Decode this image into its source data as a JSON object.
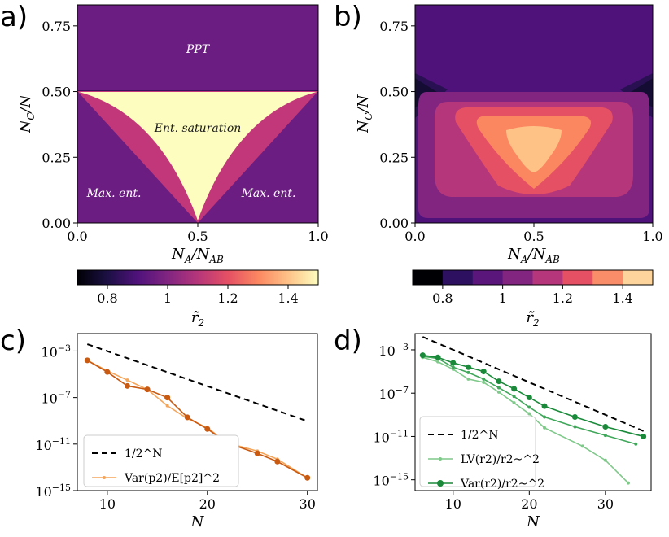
{
  "chart_data": [
    {
      "panel": "a)",
      "type": "heatmap",
      "xlabel": "N_A/N_AB",
      "ylabel": "N_C/N",
      "xlim": [
        0,
        1
      ],
      "ylim": [
        0,
        0.83
      ],
      "xticks": [
        "0.0",
        "0.5",
        "1.0"
      ],
      "yticks": [
        "0.00",
        "0.25",
        "0.50",
        "0.75"
      ],
      "regions": [
        {
          "label": "PPT",
          "value": 0.95
        },
        {
          "label": "Ent. saturation",
          "value": 1.5
        },
        {
          "label": "Max. ent.",
          "value": 1.0
        },
        {
          "label": "Max. ent.",
          "value": 1.0
        }
      ],
      "colorbar": {
        "label": "r̃₂",
        "range": [
          0.7,
          1.5
        ],
        "ticks": [
          "0.8",
          "1",
          "1.2",
          "1.4"
        ],
        "colormap": "magma",
        "discrete": false
      }
    },
    {
      "panel": "b)",
      "type": "heatmap",
      "xlabel": "N_A/N_AB",
      "ylabel": "N_C/N",
      "xlim": [
        0,
        1
      ],
      "ylim": [
        0,
        0.83
      ],
      "xticks": [
        "0.0",
        "0.5",
        "1.0"
      ],
      "yticks": [
        "0.00",
        "0.25",
        "0.50",
        "0.75"
      ],
      "contour_levels": [
        0.7,
        0.8,
        0.9,
        1.0,
        1.1,
        1.2,
        1.3,
        1.4,
        1.5
      ],
      "colorbar": {
        "label": "r̃₂",
        "range": [
          0.7,
          1.5
        ],
        "ticks": [
          "0.8",
          "1",
          "1.2",
          "1.4"
        ],
        "colormap": "magma",
        "discrete": true
      }
    },
    {
      "panel": "c)",
      "type": "line",
      "xlabel": "N",
      "ylabel": "",
      "yscale": "log",
      "xlim": [
        7,
        31
      ],
      "ylim_exp": [
        -15,
        -1.5
      ],
      "xticks": [
        "10",
        "20",
        "30"
      ],
      "yticks": [
        "10^-3",
        "10^-7",
        "10^-11",
        "10^-15"
      ],
      "series": [
        {
          "name": "1/2^N",
          "style": "dashed",
          "color": "#000000",
          "x": [
            8,
            30
          ],
          "y_exp": [
            -2.41,
            -9.03
          ]
        },
        {
          "name": "Var(p2)/E[p2]^2",
          "color": "#f5a55a",
          "x": [
            8,
            10,
            12,
            14,
            16,
            18,
            20,
            22,
            25,
            27,
            30
          ],
          "y_exp": [
            -3.8,
            -4.7,
            -5.5,
            -6.3,
            -7.7,
            -8.8,
            -9.6,
            -10.9,
            -11.6,
            -12.3,
            -13.9
          ]
        },
        {
          "name": "",
          "color": "#c85a12",
          "x": [
            8,
            10,
            12,
            14,
            16,
            18,
            20,
            22,
            25,
            27,
            30
          ],
          "y_exp": [
            -3.8,
            -4.8,
            -6.0,
            -6.3,
            -7.0,
            -8.7,
            -9.7,
            -10.9,
            -11.8,
            -12.5,
            -13.9
          ]
        }
      ]
    },
    {
      "panel": "d)",
      "type": "line",
      "xlabel": "N",
      "ylabel": "",
      "yscale": "log",
      "xlim": [
        5,
        36
      ],
      "ylim_exp": [
        -16,
        -1.5
      ],
      "xticks": [
        "10",
        "20",
        "30"
      ],
      "yticks": [
        "10^-3",
        "10^-7",
        "10^-11",
        "10^-15"
      ],
      "series": [
        {
          "name": "1/2^N",
          "style": "dashed",
          "color": "#000000",
          "x": [
            6,
            35
          ],
          "y_exp": [
            -1.8,
            -10.5
          ]
        },
        {
          "name": "LV(r2)/r2~^2",
          "color": "#7fc98a",
          "x": [
            6,
            8,
            10,
            12,
            14,
            16,
            18,
            20,
            22,
            27,
            30,
            33
          ],
          "y_exp": [
            -3.7,
            -4.1,
            -4.8,
            -5.7,
            -6.0,
            -6.9,
            -7.9,
            -8.9,
            -10.2,
            -11.9,
            -13.2,
            -15.3
          ]
        },
        {
          "name": "",
          "color": "#3fa65a",
          "x": [
            6,
            8,
            10,
            12,
            14,
            16,
            18,
            20,
            22,
            26,
            30,
            34
          ],
          "y_exp": [
            -3.6,
            -3.8,
            -4.6,
            -5.1,
            -5.7,
            -6.5,
            -7.3,
            -8.3,
            -9.2,
            -10.1,
            -10.9,
            -11.7
          ]
        },
        {
          "name": "Var(r2)/r2~^2",
          "color": "#1a8a3a",
          "x": [
            6,
            8,
            10,
            12,
            14,
            16,
            18,
            20,
            22,
            26,
            30,
            35
          ],
          "y_exp": [
            -3.5,
            -3.7,
            -4.2,
            -4.6,
            -5.0,
            -5.9,
            -6.6,
            -7.4,
            -8.2,
            -9.2,
            -10.1,
            -11.0
          ]
        }
      ]
    }
  ],
  "labels": {
    "panel_a": "a)",
    "panel_b": "b)",
    "panel_c": "c)",
    "panel_d": "d)",
    "region_ppt": "PPT",
    "region_sat": "Ent. saturation",
    "region_max_left": "Max. ent.",
    "region_max_right": "Max. ent."
  }
}
